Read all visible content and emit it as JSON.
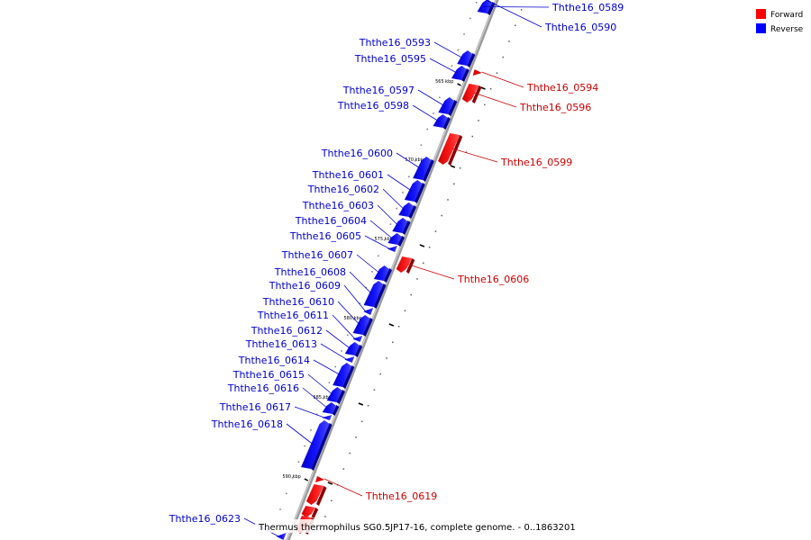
{
  "caption": "Thermus thermophilus SG0.5JP17-16, complete genome. - 0..1863201",
  "legend": [
    {
      "label": "Forward",
      "color": "#ff0000"
    },
    {
      "label": "Reverse",
      "color": "#0000ff"
    }
  ],
  "ticks": [
    "565 kbp",
    "570 kbp",
    "575 kbp",
    "580 kbp",
    "585 kbp",
    "590 kbp"
  ],
  "genes": [
    {
      "name": "Ththe16_0589",
      "strand": "reverse"
    },
    {
      "name": "Ththe16_0590",
      "strand": "reverse"
    },
    {
      "name": "Ththe16_0593",
      "strand": "reverse"
    },
    {
      "name": "Ththe16_0594",
      "strand": "forward"
    },
    {
      "name": "Ththe16_0595",
      "strand": "reverse"
    },
    {
      "name": "Ththe16_0596",
      "strand": "forward"
    },
    {
      "name": "Ththe16_0597",
      "strand": "reverse"
    },
    {
      "name": "Ththe16_0598",
      "strand": "reverse"
    },
    {
      "name": "Ththe16_0599",
      "strand": "forward"
    },
    {
      "name": "Ththe16_0600",
      "strand": "reverse"
    },
    {
      "name": "Ththe16_0601",
      "strand": "reverse"
    },
    {
      "name": "Ththe16_0602",
      "strand": "reverse"
    },
    {
      "name": "Ththe16_0603",
      "strand": "reverse"
    },
    {
      "name": "Ththe16_0604",
      "strand": "reverse"
    },
    {
      "name": "Ththe16_0605",
      "strand": "reverse"
    },
    {
      "name": "Ththe16_0606",
      "strand": "forward"
    },
    {
      "name": "Ththe16_0607",
      "strand": "reverse"
    },
    {
      "name": "Ththe16_0608",
      "strand": "reverse"
    },
    {
      "name": "Ththe16_0609",
      "strand": "reverse"
    },
    {
      "name": "Ththe16_0610",
      "strand": "reverse"
    },
    {
      "name": "Ththe16_0611",
      "strand": "reverse"
    },
    {
      "name": "Ththe16_0612",
      "strand": "reverse"
    },
    {
      "name": "Ththe16_0613",
      "strand": "reverse"
    },
    {
      "name": "Ththe16_0614",
      "strand": "reverse"
    },
    {
      "name": "Ththe16_0615",
      "strand": "reverse"
    },
    {
      "name": "Ththe16_0616",
      "strand": "reverse"
    },
    {
      "name": "Ththe16_0617",
      "strand": "reverse"
    },
    {
      "name": "Ththe16_0618",
      "strand": "reverse"
    },
    {
      "name": "Ththe16_0619",
      "strand": "forward"
    },
    {
      "name": "Ththe16_0623",
      "strand": "reverse"
    }
  ]
}
